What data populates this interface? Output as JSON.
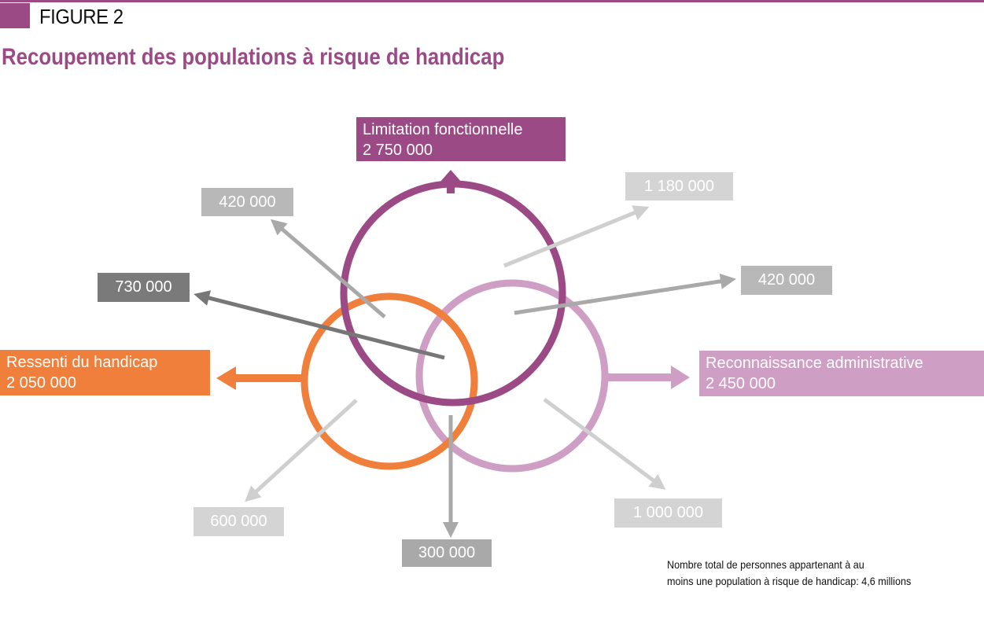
{
  "header": {
    "figure_label": "FIGURE 2",
    "title": "Recoupement des populations à risque de handicap"
  },
  "sets": {
    "limitation": {
      "label": "Limitation fonctionnelle",
      "value": "2 750 000",
      "color": "#9b4a86"
    },
    "ressenti": {
      "label": "Ressenti du handicap",
      "value": "2 050 000",
      "color": "#ef7f3a"
    },
    "reconnaissance": {
      "label": "Reconnaissance administrative",
      "value": "2 450 000",
      "color": "#cf9ec4"
    }
  },
  "overlaps": {
    "limitation_ressenti": "420 000",
    "limitation_only": "1 180 000",
    "limitation_reconnaissance": "420 000",
    "all_three": "730 000",
    "ressenti_only": "600 000",
    "ressenti_reconnaissance": "300 000",
    "reconnaissance_only": "1 000 000"
  },
  "colors": {
    "accent": "#9b4a86",
    "orange": "#ef7f3a",
    "pink": "#cf9ec4",
    "grey_light": "#c8c8c8",
    "grey_mid": "#a9a9a9",
    "grey_dark": "#777777"
  },
  "footnote": {
    "line1": "Nombre total de personnes appartenant à au",
    "line2": "moins une population à risque de handicap: 4,6 millions"
  }
}
